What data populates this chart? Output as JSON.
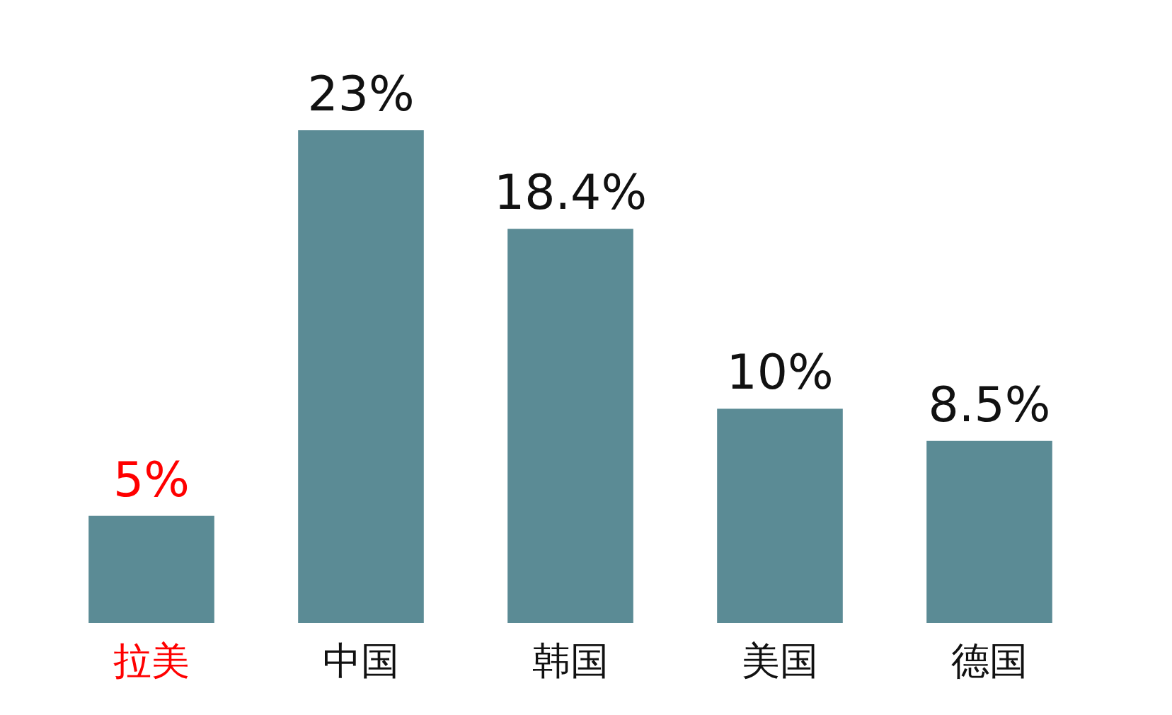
{
  "chart_data": {
    "type": "bar",
    "categories": [
      "拉美",
      "中国",
      "韩国",
      "美国",
      "德国"
    ],
    "values": [
      5,
      23,
      18.4,
      10,
      8.5
    ],
    "color": "#5b8b95",
    "value_labels": [
      "5%",
      "23%",
      "18.4%",
      "10%",
      "8.5%"
    ]
  }
}
